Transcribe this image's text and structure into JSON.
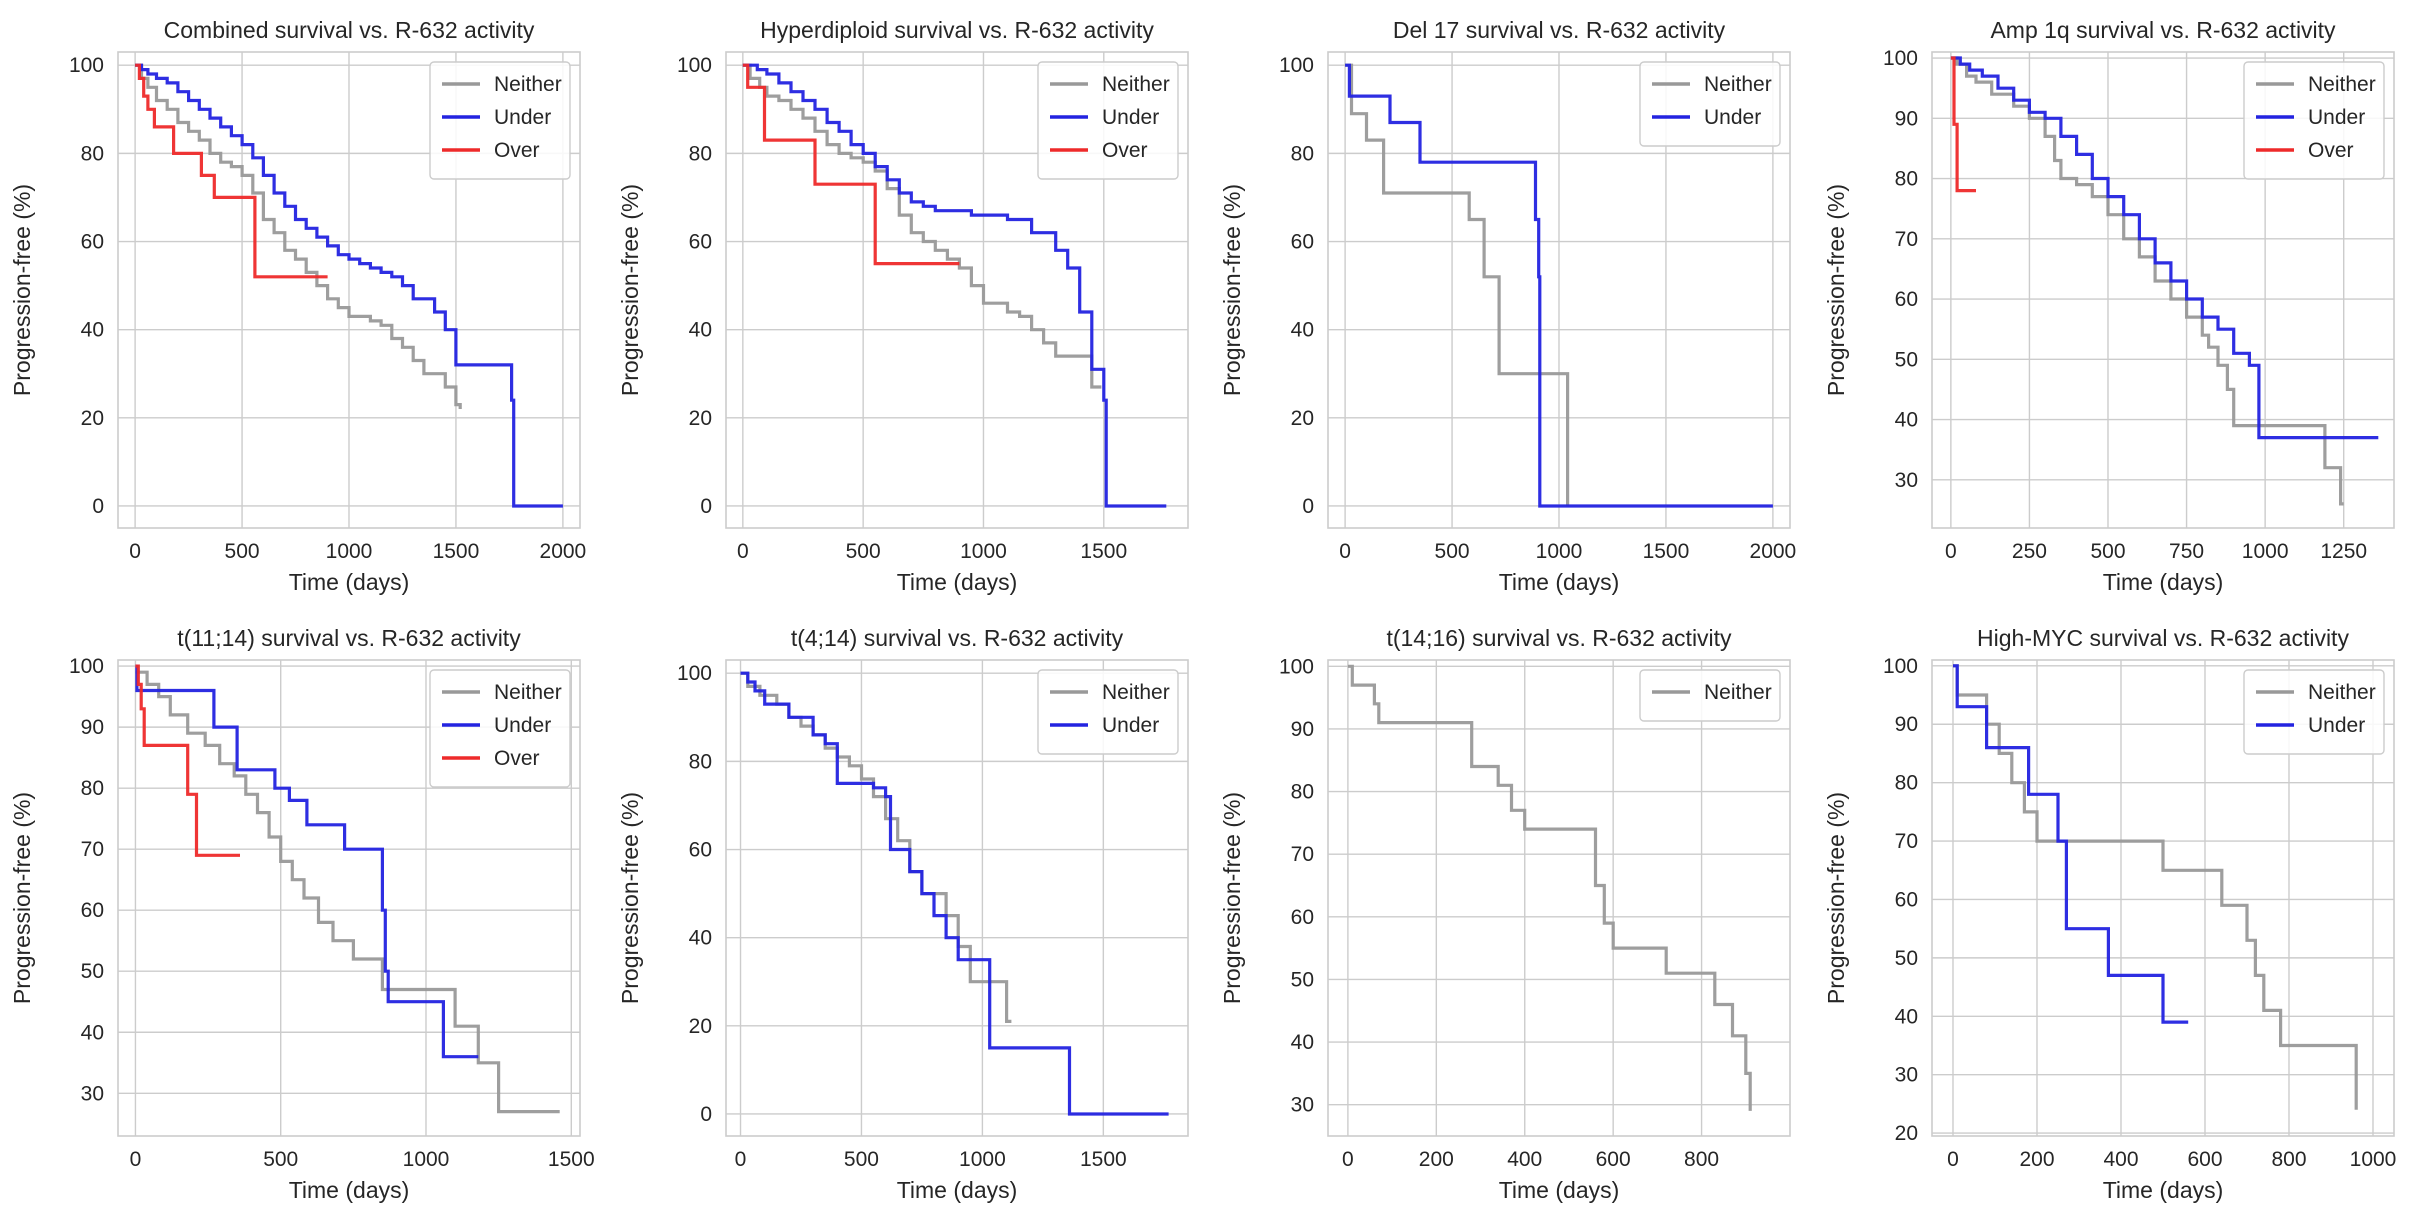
{
  "figure": {
    "colors": {
      "Neither": "#999999",
      "Under": "#2323e0",
      "Over": "#ee2a2a"
    }
  },
  "chart_data": [
    {
      "type": "line",
      "step": true,
      "title": "Combined survival vs. R-632 activity",
      "xlabel": "Time (days)",
      "ylabel": "Progression-free (%)",
      "xlim": [
        -80,
        2080
      ],
      "ylim": [
        -5,
        103
      ],
      "xticks": [
        0,
        500,
        1000,
        1500,
        2000
      ],
      "yticks": [
        0,
        20,
        40,
        60,
        80,
        100
      ],
      "legend": [
        "Neither",
        "Under",
        "Over"
      ],
      "legend_position": "top-right",
      "series": [
        {
          "name": "Neither",
          "x": [
            0,
            30,
            60,
            100,
            150,
            200,
            250,
            300,
            350,
            400,
            450,
            500,
            550,
            600,
            650,
            700,
            750,
            800,
            850,
            900,
            950,
            1000,
            1050,
            1100,
            1150,
            1200,
            1250,
            1300,
            1350,
            1400,
            1450,
            1500,
            1520
          ],
          "y": [
            100,
            97,
            95,
            92,
            90,
            87,
            85,
            83,
            80,
            78,
            77,
            75,
            71,
            65,
            62,
            58,
            56,
            53,
            50,
            47,
            45,
            43,
            43,
            42,
            41,
            38,
            36,
            33,
            30,
            30,
            27,
            23,
            22
          ]
        },
        {
          "name": "Under",
          "x": [
            0,
            30,
            60,
            100,
            150,
            200,
            250,
            300,
            350,
            400,
            450,
            500,
            550,
            600,
            650,
            700,
            750,
            800,
            850,
            900,
            950,
            1000,
            1050,
            1100,
            1150,
            1200,
            1250,
            1300,
            1350,
            1400,
            1450,
            1500,
            1760,
            1770,
            2000
          ],
          "y": [
            100,
            99,
            98,
            97,
            96,
            94,
            92,
            90,
            88,
            86,
            84,
            82,
            79,
            75,
            71,
            68,
            65,
            63,
            61,
            59,
            57,
            56,
            55,
            54,
            53,
            52,
            50,
            47,
            47,
            44,
            40,
            32,
            24,
            0,
            0
          ]
        },
        {
          "name": "Over",
          "x": [
            0,
            20,
            40,
            60,
            90,
            180,
            310,
            370,
            550,
            560,
            900
          ],
          "y": [
            100,
            97,
            93,
            90,
            86,
            80,
            75,
            70,
            70,
            52,
            52
          ]
        }
      ]
    },
    {
      "type": "line",
      "step": true,
      "title": "Hyperdiploid survival vs. R-632 activity",
      "xlabel": "Time (days)",
      "ylabel": "Progression-free (%)",
      "xlim": [
        -70,
        1850
      ],
      "ylim": [
        -5,
        103
      ],
      "xticks": [
        0,
        500,
        1000,
        1500
      ],
      "yticks": [
        0,
        20,
        40,
        60,
        80,
        100
      ],
      "legend": [
        "Neither",
        "Under",
        "Over"
      ],
      "legend_position": "top-right",
      "series": [
        {
          "name": "Neither",
          "x": [
            0,
            30,
            70,
            100,
            150,
            200,
            250,
            300,
            350,
            400,
            450,
            500,
            550,
            600,
            650,
            700,
            750,
            800,
            850,
            900,
            950,
            1000,
            1050,
            1100,
            1150,
            1200,
            1250,
            1300,
            1350,
            1400,
            1450,
            1490
          ],
          "y": [
            100,
            97,
            95,
            93,
            92,
            90,
            88,
            85,
            82,
            80,
            79,
            78,
            76,
            72,
            66,
            62,
            60,
            58,
            56,
            54,
            50,
            46,
            46,
            44,
            43,
            40,
            37,
            34,
            34,
            34,
            27,
            27
          ]
        },
        {
          "name": "Under",
          "x": [
            0,
            60,
            100,
            150,
            200,
            250,
            300,
            350,
            400,
            450,
            500,
            550,
            600,
            650,
            700,
            750,
            800,
            850,
            900,
            950,
            1000,
            1050,
            1100,
            1150,
            1200,
            1250,
            1300,
            1350,
            1400,
            1450,
            1500,
            1510,
            1760
          ],
          "y": [
            100,
            99,
            98,
            96,
            94,
            92,
            90,
            87,
            85,
            82,
            80,
            77,
            74,
            71,
            69,
            68,
            67,
            67,
            67,
            66,
            66,
            66,
            65,
            65,
            62,
            62,
            58,
            54,
            44,
            31,
            24,
            0,
            0
          ]
        },
        {
          "name": "Over",
          "x": [
            0,
            20,
            90,
            300,
            550,
            900
          ],
          "y": [
            100,
            95,
            83,
            73,
            55,
            55
          ]
        }
      ]
    },
    {
      "type": "line",
      "step": true,
      "title": "Del 17 survival vs. R-632 activity",
      "xlabel": "Time (days)",
      "ylabel": "Progression-free (%)",
      "xlim": [
        -80,
        2080
      ],
      "ylim": [
        -5,
        103
      ],
      "xticks": [
        0,
        500,
        1000,
        1500,
        2000
      ],
      "yticks": [
        0,
        20,
        40,
        60,
        80,
        100
      ],
      "legend": [
        "Neither",
        "Under"
      ],
      "legend_position": "top-right",
      "series": [
        {
          "name": "Neither",
          "x": [
            0,
            30,
            100,
            180,
            390,
            580,
            650,
            720,
            880,
            1040
          ],
          "y": [
            100,
            89,
            83,
            71,
            71,
            65,
            52,
            30,
            30,
            0
          ]
        },
        {
          "name": "Under",
          "x": [
            0,
            20,
            210,
            350,
            870,
            890,
            905,
            910,
            2000
          ],
          "y": [
            100,
            93,
            87,
            78,
            78,
            65,
            52,
            0,
            0
          ]
        }
      ]
    },
    {
      "type": "line",
      "step": true,
      "title": "Amp 1q survival vs. R-632 activity",
      "xlabel": "Time (days)",
      "ylabel": "Progression-free (%)",
      "xlim": [
        -60,
        1410
      ],
      "ylim": [
        22,
        101
      ],
      "xticks": [
        0,
        250,
        500,
        750,
        1000,
        1250
      ],
      "yticks": [
        30,
        40,
        50,
        60,
        70,
        80,
        90,
        100
      ],
      "legend": [
        "Neither",
        "Under",
        "Over"
      ],
      "legend_position": "top-right",
      "series": [
        {
          "name": "Neither",
          "x": [
            0,
            20,
            50,
            80,
            130,
            200,
            250,
            300,
            330,
            350,
            400,
            450,
            500,
            550,
            600,
            650,
            700,
            750,
            800,
            820,
            850,
            880,
            900,
            950,
            1000,
            1190,
            1240,
            1250
          ],
          "y": [
            100,
            99,
            97,
            96,
            94,
            92,
            90,
            87,
            83,
            80,
            79,
            77,
            74,
            70,
            67,
            63,
            60,
            57,
            54,
            52,
            49,
            45,
            39,
            39,
            39,
            32,
            26,
            26
          ]
        },
        {
          "name": "Under",
          "x": [
            0,
            30,
            60,
            100,
            150,
            200,
            250,
            300,
            350,
            400,
            450,
            500,
            550,
            600,
            650,
            700,
            750,
            800,
            850,
            900,
            950,
            980,
            1360
          ],
          "y": [
            100,
            99,
            98,
            97,
            95,
            93,
            91,
            90,
            87,
            84,
            80,
            77,
            74,
            70,
            66,
            63,
            60,
            57,
            55,
            51,
            49,
            37,
            37
          ]
        },
        {
          "name": "Over",
          "x": [
            0,
            10,
            20,
            80
          ],
          "y": [
            100,
            89,
            78,
            78
          ]
        }
      ]
    },
    {
      "type": "line",
      "step": true,
      "title": "t(11;14) survival vs. R-632 activity",
      "xlabel": "Time (days)",
      "ylabel": "Progression-free (%)",
      "xlim": [
        -60,
        1530
      ],
      "ylim": [
        23,
        101
      ],
      "xticks": [
        0,
        500,
        1000,
        1500
      ],
      "yticks": [
        30,
        40,
        50,
        60,
        70,
        80,
        90,
        100
      ],
      "legend": [
        "Neither",
        "Under",
        "Over"
      ],
      "legend_position": "top-right",
      "series": [
        {
          "name": "Neither",
          "x": [
            0,
            40,
            80,
            120,
            180,
            240,
            290,
            340,
            380,
            420,
            460,
            500,
            540,
            580,
            630,
            680,
            750,
            820,
            850,
            900,
            1000,
            1100,
            1180,
            1250,
            1460
          ],
          "y": [
            99,
            97,
            95,
            92,
            89,
            87,
            84,
            82,
            79,
            76,
            72,
            68,
            65,
            62,
            58,
            55,
            52,
            52,
            47,
            47,
            47,
            41,
            35,
            27,
            27
          ]
        },
        {
          "name": "Under",
          "x": [
            0,
            5,
            100,
            270,
            350,
            480,
            530,
            590,
            720,
            850,
            860,
            870,
            1060,
            1180
          ],
          "y": [
            100,
            96,
            96,
            90,
            83,
            80,
            78,
            74,
            70,
            60,
            50,
            45,
            36,
            36
          ]
        },
        {
          "name": "Over",
          "x": [
            0,
            10,
            20,
            30,
            180,
            210,
            360
          ],
          "y": [
            100,
            97,
            93,
            87,
            79,
            69,
            69
          ]
        }
      ]
    },
    {
      "type": "line",
      "step": true,
      "title": "t(4;14) survival vs. R-632 activity",
      "xlabel": "Time (days)",
      "ylabel": "Progression-free (%)",
      "xlim": [
        -60,
        1850
      ],
      "ylim": [
        -5,
        103
      ],
      "xticks": [
        0,
        500,
        1000,
        1500
      ],
      "yticks": [
        0,
        20,
        40,
        60,
        80,
        100
      ],
      "legend": [
        "Neither",
        "Under"
      ],
      "legend_position": "top-right",
      "series": [
        {
          "name": "Neither",
          "x": [
            0,
            30,
            80,
            150,
            200,
            250,
            300,
            350,
            400,
            450,
            500,
            550,
            600,
            650,
            700,
            750,
            800,
            850,
            900,
            950,
            1000,
            1050,
            1100,
            1120
          ],
          "y": [
            100,
            97,
            95,
            93,
            90,
            88,
            86,
            83,
            81,
            79,
            76,
            72,
            67,
            62,
            55,
            50,
            50,
            45,
            38,
            30,
            30,
            30,
            21,
            21
          ]
        },
        {
          "name": "Under",
          "x": [
            0,
            30,
            60,
            100,
            200,
            300,
            350,
            400,
            500,
            550,
            600,
            620,
            640,
            700,
            750,
            800,
            850,
            900,
            1030,
            1360,
            1770
          ],
          "y": [
            100,
            98,
            96,
            93,
            90,
            86,
            84,
            75,
            75,
            74,
            72,
            60,
            60,
            55,
            50,
            45,
            40,
            35,
            15,
            0,
            0
          ]
        }
      ]
    },
    {
      "type": "line",
      "step": true,
      "title": "t(14;16) survival vs. R-632 activity",
      "xlabel": "Time (days)",
      "ylabel": "Progression-free (%)",
      "xlim": [
        -45,
        1000
      ],
      "ylim": [
        25,
        101
      ],
      "xticks": [
        0,
        200,
        400,
        600,
        800
      ],
      "yticks": [
        30,
        40,
        50,
        60,
        70,
        80,
        90,
        100
      ],
      "legend": [
        "Neither"
      ],
      "legend_position": "top-right",
      "series": [
        {
          "name": "Neither",
          "x": [
            0,
            10,
            60,
            70,
            260,
            280,
            340,
            370,
            400,
            550,
            560,
            580,
            600,
            680,
            720,
            830,
            870,
            900,
            910
          ],
          "y": [
            100,
            97,
            94,
            91,
            91,
            84,
            81,
            77,
            74,
            74,
            65,
            59,
            55,
            55,
            51,
            46,
            41,
            35,
            29
          ]
        }
      ]
    },
    {
      "type": "line",
      "step": true,
      "title": "High-MYC survival vs. R-632 activity",
      "xlabel": "Time (days)",
      "ylabel": "Progression-free (%)",
      "xlim": [
        -50,
        1050
      ],
      "ylim": [
        19.5,
        101
      ],
      "xticks": [
        0,
        200,
        400,
        600,
        800,
        1000
      ],
      "yticks": [
        20,
        30,
        40,
        50,
        60,
        70,
        80,
        90,
        100
      ],
      "legend": [
        "Neither",
        "Under"
      ],
      "legend_position": "top-right",
      "series": [
        {
          "name": "Neither",
          "x": [
            0,
            10,
            80,
            110,
            140,
            170,
            200,
            480,
            500,
            640,
            700,
            720,
            740,
            780,
            960
          ],
          "y": [
            100,
            95,
            90,
            85,
            80,
            75,
            70,
            70,
            65,
            59,
            53,
            47,
            41,
            35,
            24
          ]
        },
        {
          "name": "Under",
          "x": [
            0,
            10,
            80,
            180,
            250,
            270,
            370,
            500,
            560
          ],
          "y": [
            100,
            93,
            86,
            78,
            70,
            55,
            47,
            39,
            39
          ]
        }
      ]
    }
  ]
}
